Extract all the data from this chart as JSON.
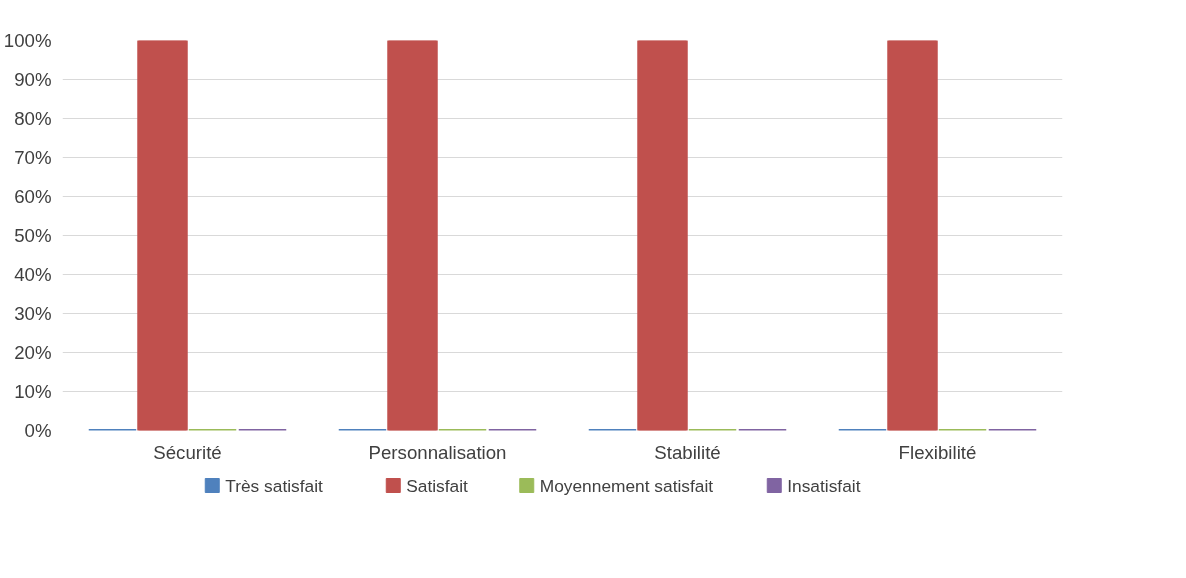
{
  "chart_data": {
    "type": "bar",
    "categories": [
      "Sécurité",
      "Personnalisation",
      "Stabilité",
      "Flexibilité"
    ],
    "series": [
      {
        "name": "Très satisfait",
        "color": "#4f81bd",
        "values": [
          0,
          0,
          0,
          0
        ]
      },
      {
        "name": "Satisfait",
        "color": "#c0504d",
        "values": [
          100,
          100,
          100,
          100
        ]
      },
      {
        "name": "Moyennement satisfait",
        "color": "#9bbb59",
        "values": [
          0,
          0,
          0,
          0
        ]
      },
      {
        "name": "Insatisfait",
        "color": "#8064a2",
        "values": [
          0,
          0,
          0,
          0
        ]
      }
    ],
    "ylim": [
      0,
      100
    ],
    "yticks": [
      {
        "value": 0,
        "label": "0%"
      },
      {
        "value": 10,
        "label": "10%"
      },
      {
        "value": 20,
        "label": "20%"
      },
      {
        "value": 30,
        "label": "30%"
      },
      {
        "value": 40,
        "label": "40%"
      },
      {
        "value": 50,
        "label": "50%"
      },
      {
        "value": 60,
        "label": "60%"
      },
      {
        "value": 70,
        "label": "70%"
      },
      {
        "value": 80,
        "label": "80%"
      },
      {
        "value": 90,
        "label": "90%"
      },
      {
        "value": 100,
        "label": "100%"
      }
    ],
    "grid": "y",
    "legend": "bottom"
  }
}
